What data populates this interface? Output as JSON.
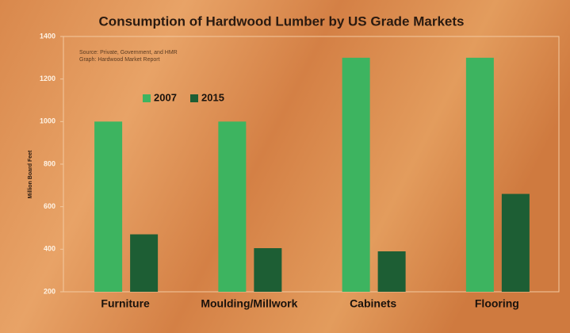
{
  "chart_data": {
    "type": "bar",
    "title": "Consumption of Hardwood Lumber by US Grade Markets",
    "notes": [
      "Source: Private, Government, and HMR",
      "Graph: Hardwood Market Report"
    ],
    "y_label": "Million Board Feet",
    "categories": [
      "Furniture",
      "Moulding/Millwork",
      "Cabinets",
      "Flooring"
    ],
    "series": [
      {
        "name": "2007",
        "color": "#3db460",
        "values": [
          1000,
          1000,
          1300,
          1300
        ]
      },
      {
        "name": "2015",
        "color": "#1d5e34",
        "values": [
          470,
          405,
          390,
          660
        ]
      }
    ],
    "ylim": [
      200,
      1400
    ],
    "yticks": [
      200,
      400,
      600,
      800,
      1000,
      1200,
      1400
    ],
    "legend": "upper-left"
  }
}
